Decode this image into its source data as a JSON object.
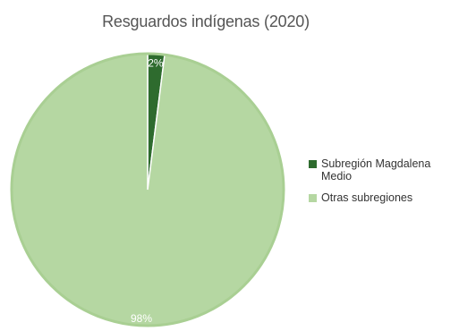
{
  "chart_data": {
    "type": "pie",
    "title": "Resguardos indígenas (2020)",
    "slices": [
      {
        "name": "Subregión Magdalena Medio",
        "value": 2,
        "label": "2%",
        "color": "#2e6b2e"
      },
      {
        "name": "Otras subregiones",
        "value": 98,
        "label": "98%",
        "color": "#b5d7a2"
      }
    ],
    "legend_position": "right"
  },
  "colors": {
    "pie_border": "#a9cf93",
    "slice_separator": "#ffffff"
  }
}
